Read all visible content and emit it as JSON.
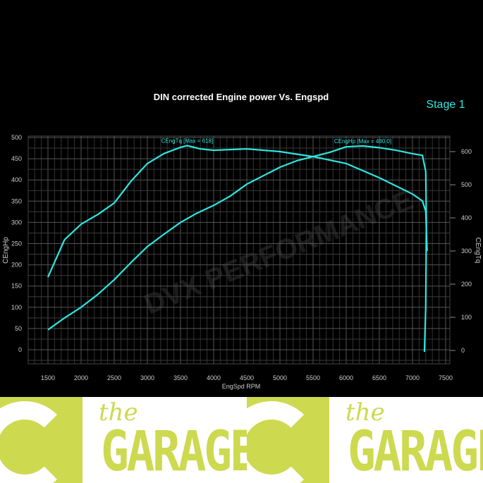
{
  "chart_data": {
    "type": "line",
    "title": "DIN corrected Engine power Vs. Engspd",
    "badge": "Stage 1",
    "xlabel": "EngSpd RPM",
    "ylabel_left": "CEngHp",
    "ylabel_right": "CEngTq",
    "xlim": [
      1500,
      7500
    ],
    "ylim_left": [
      0,
      500
    ],
    "ylim_right": [
      0,
      600
    ],
    "x_ticks": [
      "1500",
      "2000",
      "2500",
      "3000",
      "3500",
      "4000",
      "4500",
      "5000",
      "5500",
      "6000",
      "6500",
      "7000",
      "7500"
    ],
    "y_ticks_left": [
      "0",
      "50",
      "100",
      "150",
      "200",
      "250",
      "300",
      "350",
      "400",
      "450",
      "500"
    ],
    "y_ticks_right": [
      "0",
      "100",
      "200",
      "300",
      "400",
      "500",
      "600"
    ],
    "grid": true,
    "series": [
      {
        "name": "CEngHp",
        "label": "CEngHp [Max = 480.0]",
        "axis": "left",
        "color": "#2ee6e0",
        "x": [
          1500,
          1750,
          2000,
          2250,
          2500,
          2750,
          3000,
          3250,
          3500,
          3750,
          4000,
          4250,
          4500,
          4750,
          5000,
          5250,
          5500,
          5750,
          6000,
          6250,
          6500,
          6750,
          7000,
          7150,
          7200,
          7210,
          7200,
          7180
        ],
        "y": [
          47,
          75,
          100,
          130,
          165,
          205,
          243,
          272,
          300,
          322,
          340,
          362,
          390,
          410,
          430,
          445,
          455,
          465,
          478,
          480,
          476,
          470,
          462,
          458,
          420,
          300,
          100,
          -5
        ]
      },
      {
        "name": "CEngTq",
        "label": "CEngTq [Max = 618]",
        "axis": "right",
        "color": "#2ee6e0",
        "x": [
          1500,
          1750,
          2000,
          2250,
          2500,
          2750,
          3000,
          3250,
          3500,
          3600,
          3800,
          4000,
          4500,
          5000,
          5500,
          6000,
          6500,
          7000,
          7150,
          7200,
          7220
        ],
        "y": [
          221,
          334,
          381,
          410,
          445,
          510,
          564,
          594,
          613,
          618,
          608,
          604,
          608,
          600,
          585,
          564,
          521,
          472,
          451,
          420,
          300
        ]
      }
    ]
  },
  "watermark": "DVX PERFORMANCE",
  "logos": [
    {
      "small": "the",
      "big": "GARAGE"
    },
    {
      "small": "the",
      "big": "GARAGE"
    }
  ],
  "colors": {
    "line": "#2ee6e0",
    "brand": "#cdd94f",
    "background": "#000000"
  }
}
